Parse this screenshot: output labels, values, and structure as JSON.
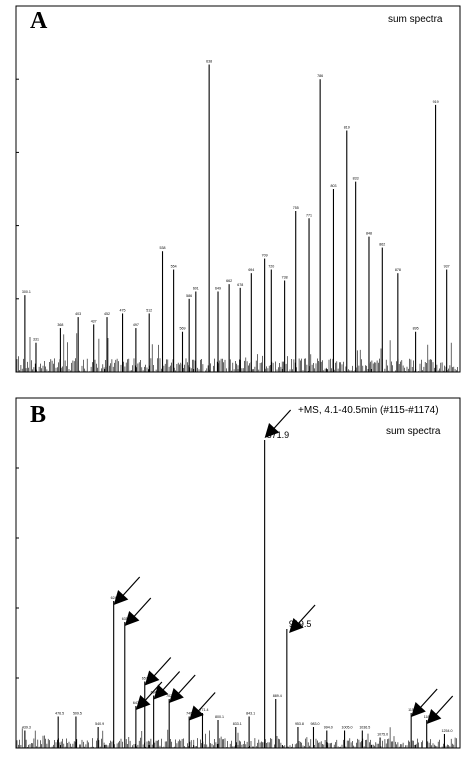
{
  "chart_data": [
    {
      "panel": "A",
      "type": "line",
      "legend": "sum spectra",
      "xlim": [
        0,
        100
      ],
      "ylim": [
        0,
        100
      ],
      "peaks": [
        {
          "x": 2.0,
          "y": 21,
          "label": "300.1"
        },
        {
          "x": 4.5,
          "y": 8,
          "label": "331"
        },
        {
          "x": 10.0,
          "y": 12,
          "label": "368"
        },
        {
          "x": 14.0,
          "y": 15,
          "label": "403"
        },
        {
          "x": 17.5,
          "y": 13,
          "label": "437"
        },
        {
          "x": 20.5,
          "y": 15,
          "label": "452"
        },
        {
          "x": 24.0,
          "y": 16,
          "label": "475"
        },
        {
          "x": 27.0,
          "y": 12,
          "label": "497"
        },
        {
          "x": 30.0,
          "y": 16,
          "label": "512"
        },
        {
          "x": 33.0,
          "y": 33,
          "label": "538"
        },
        {
          "x": 35.5,
          "y": 28,
          "label": "554"
        },
        {
          "x": 37.5,
          "y": 11,
          "label": "569"
        },
        {
          "x": 39.0,
          "y": 20,
          "label": "586"
        },
        {
          "x": 40.5,
          "y": 22,
          "label": "601"
        },
        {
          "x": 43.5,
          "y": 84,
          "label": "638"
        },
        {
          "x": 45.5,
          "y": 22,
          "label": "649"
        },
        {
          "x": 48.0,
          "y": 24,
          "label": "662"
        },
        {
          "x": 50.5,
          "y": 23,
          "label": "678"
        },
        {
          "x": 53.0,
          "y": 27,
          "label": "694"
        },
        {
          "x": 56.0,
          "y": 31,
          "label": "709"
        },
        {
          "x": 57.5,
          "y": 28,
          "label": "720"
        },
        {
          "x": 60.5,
          "y": 25,
          "label": "738"
        },
        {
          "x": 63.0,
          "y": 44,
          "label": "755"
        },
        {
          "x": 66.0,
          "y": 42,
          "label": "771"
        },
        {
          "x": 68.5,
          "y": 80,
          "label": "786"
        },
        {
          "x": 71.5,
          "y": 50,
          "label": "803"
        },
        {
          "x": 74.5,
          "y": 66,
          "label": "819"
        },
        {
          "x": 76.5,
          "y": 52,
          "label": "833"
        },
        {
          "x": 79.5,
          "y": 37,
          "label": "848"
        },
        {
          "x": 82.5,
          "y": 34,
          "label": "862"
        },
        {
          "x": 86.0,
          "y": 27,
          "label": "878"
        },
        {
          "x": 90.0,
          "y": 11,
          "label": "895"
        },
        {
          "x": 94.5,
          "y": 73,
          "label": "919"
        },
        {
          "x": 97.0,
          "y": 28,
          "label": "937"
        }
      ]
    },
    {
      "panel": "B",
      "type": "line",
      "header": "+MS, 4.1-40.5min (#115-#1174)",
      "legend": "sum spectra",
      "xlim": [
        0,
        100
      ],
      "ylim": [
        0,
        100
      ],
      "peaks": [
        {
          "x": 2.0,
          "y": 5,
          "label": "439.3"
        },
        {
          "x": 9.5,
          "y": 9,
          "label": "476.5"
        },
        {
          "x": 13.5,
          "y": 9,
          "label": "509.5"
        },
        {
          "x": 18.5,
          "y": 6,
          "label": "540.9"
        },
        {
          "x": 22.0,
          "y": 42,
          "label": "624.5"
        },
        {
          "x": 24.5,
          "y": 36,
          "label": "635.5"
        },
        {
          "x": 27.0,
          "y": 12,
          "label": "647.4"
        },
        {
          "x": 29.0,
          "y": 19,
          "label": "657.2"
        },
        {
          "x": 31.0,
          "y": 15,
          "label": "684.1"
        },
        {
          "x": 34.5,
          "y": 14,
          "label": "702.1"
        },
        {
          "x": 39.0,
          "y": 9,
          "label": "746.6"
        },
        {
          "x": 42.0,
          "y": 10,
          "label": "771.4"
        },
        {
          "x": 45.5,
          "y": 8,
          "label": "800.1"
        },
        {
          "x": 49.5,
          "y": 6,
          "label": "833.1"
        },
        {
          "x": 52.5,
          "y": 9,
          "label": "843.1"
        },
        {
          "x": 56.0,
          "y": 88,
          "label": "871.9"
        },
        {
          "x": 58.5,
          "y": 14,
          "label": "889.4"
        },
        {
          "x": 61.0,
          "y": 34,
          "label": "919.5"
        },
        {
          "x": 63.5,
          "y": 6,
          "label": "953.8"
        },
        {
          "x": 67.0,
          "y": 6,
          "label": "983.0"
        },
        {
          "x": 70.0,
          "y": 5,
          "label": "994.0"
        },
        {
          "x": 74.0,
          "y": 5,
          "label": "1005.0"
        },
        {
          "x": 78.0,
          "y": 5,
          "label": "1036.5"
        },
        {
          "x": 82.0,
          "y": 3,
          "label": "1075.0"
        },
        {
          "x": 89.0,
          "y": 10,
          "label": "1156.4"
        },
        {
          "x": 92.5,
          "y": 8,
          "label": "1181.8"
        },
        {
          "x": 96.5,
          "y": 4,
          "label": "1254.0"
        }
      ],
      "arrow_targets": [
        22.0,
        24.5,
        27.0,
        29.0,
        31.0,
        34.5,
        39.0,
        56.0,
        61.5,
        89.0,
        92.5
      ]
    }
  ],
  "panels": {
    "a": {
      "letter": "A"
    },
    "b": {
      "letter": "B"
    }
  }
}
